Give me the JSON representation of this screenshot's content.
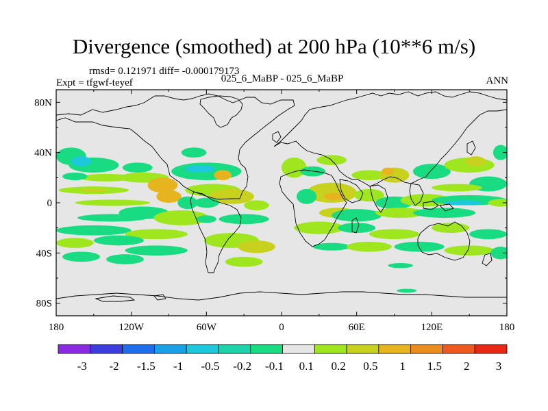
{
  "title": "Divergence (smoothed) at 200 hPa (10**6 m/s)",
  "stats": "rmsd= 0.121971 diff= -0.000179173",
  "experiment": "Expt = tfgwf-teyef",
  "case_names": "025_6_MaBP - 025_6_MaBP",
  "season": "ANN",
  "chart_data": {
    "type": "heatmap",
    "title": "Divergence (smoothed) at 200 hPa (10**6 m/s)",
    "xlim": [
      -180,
      180
    ],
    "ylim": [
      -90,
      90
    ],
    "x_ticks": [
      {
        "value": -180,
        "label": "180"
      },
      {
        "value": -120,
        "label": "120W"
      },
      {
        "value": -60,
        "label": "60W"
      },
      {
        "value": 0,
        "label": "0"
      },
      {
        "value": 60,
        "label": "60E"
      },
      {
        "value": 120,
        "label": "120E"
      },
      {
        "value": 180,
        "label": "180"
      }
    ],
    "y_ticks": [
      {
        "value": 80,
        "label": "80N"
      },
      {
        "value": 40,
        "label": "40N"
      },
      {
        "value": 0,
        "label": "0"
      },
      {
        "value": -40,
        "label": "40S"
      },
      {
        "value": -80,
        "label": "80S"
      }
    ],
    "colorbar": {
      "labels": [
        "-3",
        "-2",
        "-1.5",
        "-1",
        "-0.5",
        "-0.2",
        "-0.1",
        "0.1",
        "0.2",
        "0.5",
        "1",
        "1.5",
        "2",
        "3"
      ],
      "colors": [
        "#8a2be2",
        "#3c3cde",
        "#1e6eec",
        "#19a0e6",
        "#1ec8dc",
        "#1ed2aa",
        "#19dc82",
        "#e6e6e6",
        "#a0e61e",
        "#c8d21e",
        "#e6b41e",
        "#eb8c1e",
        "#ec5a1e",
        "#e62814"
      ]
    },
    "blobs": [
      {
        "lon": -168,
        "lat": 37,
        "rx": 12,
        "ry": 7,
        "value": -0.15
      },
      {
        "lon": -150,
        "lat": 30,
        "rx": 20,
        "ry": 6,
        "value": -0.15
      },
      {
        "lon": -160,
        "lat": 33,
        "rx": 8,
        "ry": 4,
        "value": -0.7
      },
      {
        "lon": -115,
        "lat": 28,
        "rx": 12,
        "ry": 4,
        "value": -0.15
      },
      {
        "lon": -140,
        "lat": 20,
        "rx": 22,
        "ry": 3,
        "value": 0.15
      },
      {
        "lon": -165,
        "lat": 21,
        "rx": 10,
        "ry": 3,
        "value": -0.15
      },
      {
        "lon": -110,
        "lat": 20,
        "rx": 20,
        "ry": 4,
        "value": 0.15
      },
      {
        "lon": -95,
        "lat": 14,
        "rx": 12,
        "ry": 6,
        "value": 0.7
      },
      {
        "lon": -150,
        "lat": 10,
        "rx": 28,
        "ry": 3,
        "value": 0.15
      },
      {
        "lon": -150,
        "lat": 10,
        "rx": 10,
        "ry": 1.5,
        "value": 0.3
      },
      {
        "lon": -135,
        "lat": 0,
        "rx": 30,
        "ry": 2.5,
        "value": 0.15
      },
      {
        "lon": -60,
        "lat": 25,
        "rx": 28,
        "ry": 7,
        "value": -0.15
      },
      {
        "lon": -65,
        "lat": 27,
        "rx": 12,
        "ry": 3,
        "value": -0.7
      },
      {
        "lon": -70,
        "lat": 40,
        "rx": 10,
        "ry": 4,
        "value": -0.15
      },
      {
        "lon": -47,
        "lat": 22,
        "rx": 7,
        "ry": 4,
        "value": 0.7
      },
      {
        "lon": -55,
        "lat": 10,
        "rx": 22,
        "ry": 5,
        "value": 0.15
      },
      {
        "lon": -40,
        "lat": 5,
        "rx": 18,
        "ry": 6,
        "value": 0.3
      },
      {
        "lon": -60,
        "lat": 0,
        "rx": 10,
        "ry": 4,
        "value": -0.15
      },
      {
        "lon": -90,
        "lat": 5,
        "rx": 10,
        "ry": 5,
        "value": 0.7
      },
      {
        "lon": -75,
        "lat": 0,
        "rx": 8,
        "ry": 5,
        "value": -0.15
      },
      {
        "lon": -20,
        "lat": -2,
        "rx": 10,
        "ry": 4,
        "value": 0.15
      },
      {
        "lon": -110,
        "lat": -8,
        "rx": 20,
        "ry": 5,
        "value": -0.15
      },
      {
        "lon": -135,
        "lat": -12,
        "rx": 28,
        "ry": 3,
        "value": -0.15
      },
      {
        "lon": -80,
        "lat": -12,
        "rx": 22,
        "ry": 6,
        "value": 0.15
      },
      {
        "lon": -60,
        "lat": -13,
        "rx": 8,
        "ry": 3,
        "value": -0.15
      },
      {
        "lon": -30,
        "lat": -13,
        "rx": 20,
        "ry": 4,
        "value": -0.15
      },
      {
        "lon": -150,
        "lat": -22,
        "rx": 30,
        "ry": 4,
        "value": -0.15
      },
      {
        "lon": -100,
        "lat": -25,
        "rx": 25,
        "ry": 4,
        "value": 0.15
      },
      {
        "lon": -165,
        "lat": -32,
        "rx": 15,
        "ry": 4,
        "value": 0.15
      },
      {
        "lon": -130,
        "lat": -30,
        "rx": 20,
        "ry": 4,
        "value": -0.15
      },
      {
        "lon": -100,
        "lat": -38,
        "rx": 25,
        "ry": 4,
        "value": -0.15
      },
      {
        "lon": -40,
        "lat": -30,
        "rx": 22,
        "ry": 6,
        "value": 0.15
      },
      {
        "lon": -20,
        "lat": -35,
        "rx": 15,
        "ry": 5,
        "value": 0.3
      },
      {
        "lon": -160,
        "lat": -43,
        "rx": 15,
        "ry": 4,
        "value": -0.15
      },
      {
        "lon": -125,
        "lat": -45,
        "rx": 15,
        "ry": 4,
        "value": -0.15
      },
      {
        "lon": -30,
        "lat": -47,
        "rx": 15,
        "ry": 4,
        "value": 0.15
      },
      {
        "lon": 10,
        "lat": 28,
        "rx": 10,
        "ry": 8,
        "value": 0.15
      },
      {
        "lon": 25,
        "lat": 25,
        "rx": 10,
        "ry": 4,
        "value": -0.15
      },
      {
        "lon": 40,
        "lat": 34,
        "rx": 12,
        "ry": 4,
        "value": 0.15
      },
      {
        "lon": 70,
        "lat": 22,
        "rx": 14,
        "ry": 4,
        "value": 0.15
      },
      {
        "lon": 90,
        "lat": 22,
        "rx": 12,
        "ry": 6,
        "value": 0.3
      },
      {
        "lon": 85,
        "lat": 25,
        "rx": 5,
        "ry": 3,
        "value": 0.7
      },
      {
        "lon": 120,
        "lat": 25,
        "rx": 15,
        "ry": 6,
        "value": -0.15
      },
      {
        "lon": 150,
        "lat": 30,
        "rx": 20,
        "ry": 6,
        "value": 0.15
      },
      {
        "lon": 155,
        "lat": 33,
        "rx": 8,
        "ry": 4,
        "value": 0.3
      },
      {
        "lon": 165,
        "lat": 15,
        "rx": 15,
        "ry": 6,
        "value": -0.15
      },
      {
        "lon": 175,
        "lat": 40,
        "rx": 6,
        "ry": 6,
        "value": -0.15
      },
      {
        "lon": 140,
        "lat": 12,
        "rx": 20,
        "ry": 3,
        "value": 0.15
      },
      {
        "lon": 40,
        "lat": 8,
        "rx": 20,
        "ry": 8,
        "value": 0.3
      },
      {
        "lon": 42,
        "lat": 5,
        "rx": 8,
        "ry": 3,
        "value": 0.7
      },
      {
        "lon": 20,
        "lat": 5,
        "rx": 8,
        "ry": 6,
        "value": -0.15
      },
      {
        "lon": 70,
        "lat": 6,
        "rx": 12,
        "ry": 5,
        "value": 0.15
      },
      {
        "lon": 90,
        "lat": 0,
        "rx": 15,
        "ry": 5,
        "value": -0.15
      },
      {
        "lon": 115,
        "lat": 2,
        "rx": 20,
        "ry": 5,
        "value": 0.15
      },
      {
        "lon": 150,
        "lat": 2,
        "rx": 30,
        "ry": 4,
        "value": -0.15
      },
      {
        "lon": 145,
        "lat": 0,
        "rx": 15,
        "ry": 2,
        "value": -0.7
      },
      {
        "lon": 175,
        "lat": 0,
        "rx": 10,
        "ry": 3,
        "value": 0.15
      },
      {
        "lon": 45,
        "lat": -8,
        "rx": 15,
        "ry": 4,
        "value": 0.3
      },
      {
        "lon": 60,
        "lat": -10,
        "rx": 20,
        "ry": 5,
        "value": -0.15
      },
      {
        "lon": 95,
        "lat": -8,
        "rx": 20,
        "ry": 4,
        "value": 0.15
      },
      {
        "lon": 130,
        "lat": -8,
        "rx": 25,
        "ry": 4,
        "value": -0.15
      },
      {
        "lon": 30,
        "lat": -20,
        "rx": 20,
        "ry": 5,
        "value": 0.15
      },
      {
        "lon": 60,
        "lat": -20,
        "rx": 15,
        "ry": 4,
        "value": -0.15
      },
      {
        "lon": 90,
        "lat": -25,
        "rx": 20,
        "ry": 4,
        "value": 0.15
      },
      {
        "lon": 135,
        "lat": -20,
        "rx": 15,
        "ry": 4,
        "value": 0.15
      },
      {
        "lon": 165,
        "lat": -25,
        "rx": 15,
        "ry": 4,
        "value": -0.15
      },
      {
        "lon": 40,
        "lat": -35,
        "rx": 15,
        "ry": 3,
        "value": -0.15
      },
      {
        "lon": 70,
        "lat": -35,
        "rx": 18,
        "ry": 4,
        "value": 0.15
      },
      {
        "lon": 110,
        "lat": -35,
        "rx": 20,
        "ry": 4,
        "value": -0.15
      },
      {
        "lon": 150,
        "lat": -38,
        "rx": 20,
        "ry": 4,
        "value": 0.15
      },
      {
        "lon": 175,
        "lat": -40,
        "rx": 8,
        "ry": 5,
        "value": -0.15
      },
      {
        "lon": 95,
        "lat": -50,
        "rx": 10,
        "ry": 2,
        "value": -0.15
      },
      {
        "lon": 100,
        "lat": -70,
        "rx": 8,
        "ry": 1.5,
        "value": -0.15
      }
    ]
  }
}
